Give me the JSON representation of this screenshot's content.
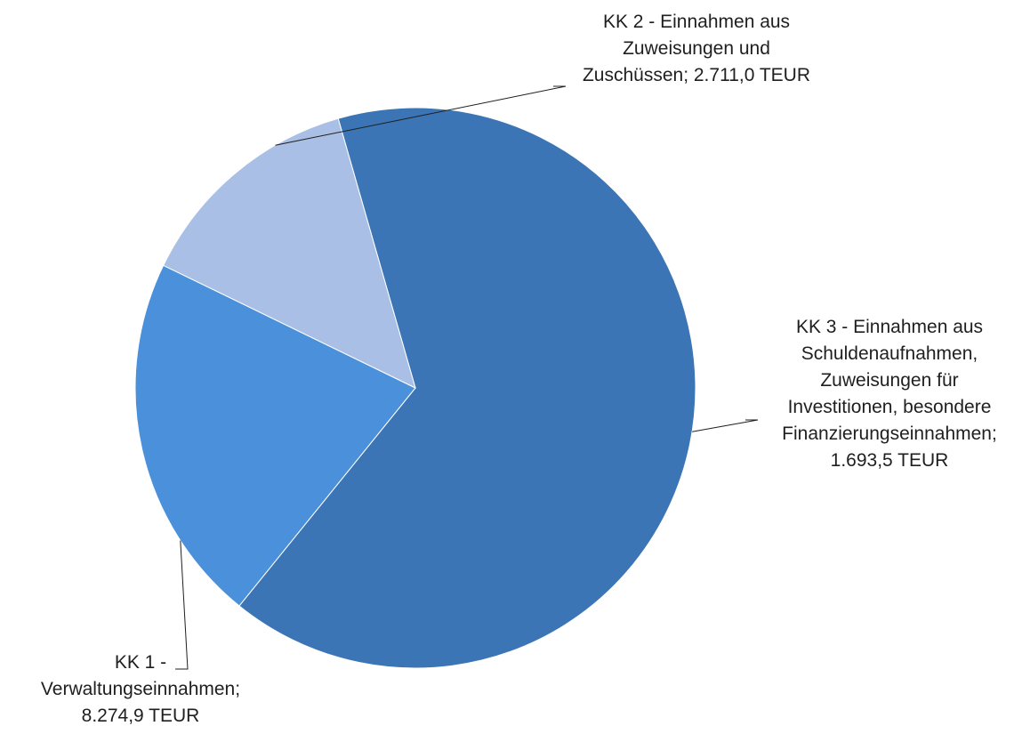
{
  "chart_data": {
    "type": "pie",
    "title": "",
    "unit": "TEUR",
    "start_angle_deg": -16,
    "slices": [
      {
        "name": "KK 1 - Verwaltungseinnahmen",
        "value": 8274.9,
        "color": "#3b75b5",
        "label_lines": [
          "KK 1 -",
          "Verwaltungseinnahmen;",
          "8.274,9 TEUR"
        ]
      },
      {
        "name": "KK 2 - Einnahmen aus Zuweisungen und Zuschüssen",
        "value": 2711.0,
        "color": "#4a90db",
        "label_lines": [
          "KK 2 - Einnahmen aus",
          "Zuweisungen und",
          "Zuschüssen; 2.711,0 TEUR"
        ]
      },
      {
        "name": "KK 3 - Einnahmen aus Schuldenaufnahmen, Zuweisungen für Investitionen, besondere Finanzierungseinnahmen",
        "value": 1693.5,
        "color": "#a9bfe6",
        "label_lines": [
          "KK 3 - Einnahmen aus",
          "Schuldenaufnahmen,",
          "Zuweisungen für",
          "Investitionen, besondere",
          "Finanzierungseinnahmen;",
          "1.693,5 TEUR"
        ]
      }
    ],
    "legend": "none"
  }
}
